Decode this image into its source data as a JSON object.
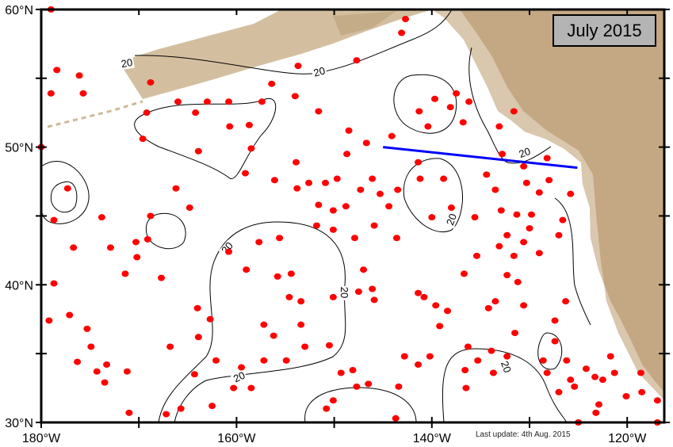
{
  "title": "July 2015",
  "last_update": "Last update: 4th Aug. 2015",
  "axes": {
    "lon_labels": [
      {
        "lon": -180,
        "label": "180°W"
      },
      {
        "lon": -160,
        "label": "160°W"
      },
      {
        "lon": -140,
        "label": "140°W"
      },
      {
        "lon": -120,
        "label": "120°W"
      }
    ],
    "lat_labels": [
      {
        "lat": 60,
        "label": "60°N"
      },
      {
        "lat": 50,
        "label": "50°N"
      },
      {
        "lat": 40,
        "label": "40°N"
      },
      {
        "lat": 30,
        "label": "30°N"
      }
    ],
    "lon_range": [
      -180,
      -116.2
    ],
    "lat_range": [
      30,
      60
    ]
  },
  "contour_labels": [
    "20",
    "20",
    "20",
    "20",
    "20",
    "20",
    "20",
    "20"
  ],
  "colors": {
    "floats": "#ff0000",
    "section_line": "#0000ff",
    "land": "#c9b08f",
    "contour": "#000000"
  },
  "section_line": {
    "start": [
      -145.0,
      50.0
    ],
    "end": [
      -125.1,
      48.5
    ]
  },
  "floats": [
    [
      -179.0,
      60.0
    ],
    [
      -178.4,
      55.6
    ],
    [
      -176.1,
      55.2
    ],
    [
      -175.7,
      53.9
    ],
    [
      -179.0,
      53.9
    ],
    [
      -168.8,
      54.7
    ],
    [
      -166.0,
      53.3
    ],
    [
      -163.0,
      53.3
    ],
    [
      -160.8,
      53.3
    ],
    [
      -169.2,
      52.5
    ],
    [
      -169.6,
      50.6
    ],
    [
      -164.2,
      52.5
    ],
    [
      -157.4,
      53.3
    ],
    [
      -156.4,
      54.6
    ],
    [
      -154.0,
      53.7
    ],
    [
      -153.7,
      55.9
    ],
    [
      -151.6,
      52.6
    ],
    [
      -147.7,
      56.3
    ],
    [
      -143.1,
      58.3
    ],
    [
      -142.7,
      59.3
    ],
    [
      -141.3,
      52.6
    ],
    [
      -139.7,
      53.5
    ],
    [
      -140.4,
      51.5
    ],
    [
      -137.5,
      53.9
    ],
    [
      -136.2,
      53.3
    ],
    [
      -136.8,
      51.8
    ],
    [
      -138.1,
      52.9
    ],
    [
      -133.1,
      51.5
    ],
    [
      -131.6,
      52.6
    ],
    [
      -130.6,
      48.6
    ],
    [
      -128.2,
      49.2
    ],
    [
      -132.8,
      49.5
    ],
    [
      -134.4,
      48.0
    ],
    [
      -144.1,
      50.8
    ],
    [
      -146.7,
      50.3
    ],
    [
      -148.5,
      51.2
    ],
    [
      -148.7,
      49.5
    ],
    [
      -149.7,
      47.7
    ],
    [
      -152.6,
      47.4
    ],
    [
      -153.8,
      47.0
    ],
    [
      -153.9,
      48.9
    ],
    [
      -156.1,
      47.6
    ],
    [
      -159.1,
      48.1
    ],
    [
      -158.5,
      49.9
    ],
    [
      -160.7,
      51.5
    ],
    [
      -158.7,
      51.6
    ],
    [
      -163.9,
      49.7
    ],
    [
      -166.2,
      47.0
    ],
    [
      -164.8,
      45.6
    ],
    [
      -168.8,
      45.0
    ],
    [
      -169.1,
      43.3
    ],
    [
      -170.3,
      43.1
    ],
    [
      -170.2,
      42.0
    ],
    [
      -171.4,
      40.8
    ],
    [
      -167.7,
      40.5
    ],
    [
      -173.8,
      44.9
    ],
    [
      -172.9,
      42.7
    ],
    [
      -177.3,
      47.0
    ],
    [
      -178.7,
      44.7
    ],
    [
      -176.7,
      42.7
    ],
    [
      -178.7,
      40.1
    ],
    [
      -179.2,
      37.4
    ],
    [
      -177.1,
      37.8
    ],
    [
      -175.3,
      36.8
    ],
    [
      -174.9,
      35.5
    ],
    [
      -176.3,
      34.4
    ],
    [
      -174.3,
      33.7
    ],
    [
      -173.3,
      34.2
    ],
    [
      -171.2,
      33.7
    ],
    [
      -173.5,
      32.9
    ],
    [
      -171.0,
      30.7
    ],
    [
      -167.2,
      30.6
    ],
    [
      -165.7,
      31.0
    ],
    [
      -162.5,
      31.2
    ],
    [
      -160.3,
      32.5
    ],
    [
      -158.5,
      32.5
    ],
    [
      -159.5,
      34.0
    ],
    [
      -157.2,
      34.5
    ],
    [
      -162.1,
      34.5
    ],
    [
      -164.3,
      33.5
    ],
    [
      -166.8,
      35.5
    ],
    [
      -164.0,
      38.3
    ],
    [
      -163.9,
      36.2
    ],
    [
      -162.7,
      37.5
    ],
    [
      -160.8,
      42.4
    ],
    [
      -159.0,
      41.1
    ],
    [
      -155.6,
      43.4
    ],
    [
      -157.7,
      43.1
    ],
    [
      -155.8,
      40.6
    ],
    [
      -154.4,
      40.8
    ],
    [
      -154.6,
      39.1
    ],
    [
      -157.2,
      37.1
    ],
    [
      -156.2,
      36.3
    ],
    [
      -153.4,
      38.8
    ],
    [
      -153.4,
      37.1
    ],
    [
      -153.0,
      35.5
    ],
    [
      -154.9,
      34.5
    ],
    [
      -150.5,
      35.6
    ],
    [
      -149.3,
      33.6
    ],
    [
      -148.1,
      33.8
    ],
    [
      -146.5,
      32.8
    ],
    [
      -150.8,
      31.0
    ],
    [
      -150.1,
      31.6
    ],
    [
      -147.7,
      32.6
    ],
    [
      -143.4,
      32.6
    ],
    [
      -143.7,
      30.3
    ],
    [
      -142.8,
      34.8
    ],
    [
      -141.4,
      34.2
    ],
    [
      -140.2,
      34.8
    ],
    [
      -139.2,
      37.0
    ],
    [
      -139.6,
      38.5
    ],
    [
      -138.4,
      38.1
    ],
    [
      -136.7,
      40.8
    ],
    [
      -134.2,
      38.3
    ],
    [
      -133.5,
      38.8
    ],
    [
      -135.4,
      42.1
    ],
    [
      -133.1,
      42.8
    ],
    [
      -131.6,
      42.1
    ],
    [
      -132.3,
      43.6
    ],
    [
      -130.6,
      43.1
    ],
    [
      -129.0,
      42.3
    ],
    [
      -131.3,
      45.1
    ],
    [
      -132.9,
      45.4
    ],
    [
      -133.5,
      46.9
    ],
    [
      -135.6,
      44.9
    ],
    [
      -138.0,
      45.6
    ],
    [
      -140.0,
      44.9
    ],
    [
      -138.8,
      47.7
    ],
    [
      -141.2,
      47.7
    ],
    [
      -143.5,
      46.9
    ],
    [
      -145.3,
      46.6
    ],
    [
      -146.1,
      47.7
    ],
    [
      -145.9,
      44.3
    ],
    [
      -144.4,
      45.7
    ],
    [
      -143.6,
      43.4
    ],
    [
      -150.1,
      45.4
    ],
    [
      -150.1,
      44.0
    ],
    [
      -147.9,
      43.4
    ],
    [
      -147.0,
      41.1
    ],
    [
      -148.8,
      45.7
    ],
    [
      -147.3,
      46.9
    ],
    [
      -141.4,
      48.9
    ],
    [
      -146.1,
      39.7
    ],
    [
      -147.5,
      39.5
    ],
    [
      -150.1,
      39.1
    ],
    [
      -150.9,
      47.4
    ],
    [
      -151.6,
      45.8
    ],
    [
      -151.8,
      44.3
    ],
    [
      -126.6,
      44.7
    ],
    [
      -127.0,
      43.6
    ],
    [
      -125.8,
      46.6
    ],
    [
      -129.0,
      46.7
    ],
    [
      -128.0,
      47.6
    ],
    [
      -130.3,
      47.4
    ],
    [
      -129.8,
      45.1
    ],
    [
      -130.0,
      44.1
    ],
    [
      -126.3,
      38.8
    ],
    [
      -127.4,
      37.4
    ],
    [
      -127.4,
      35.9
    ],
    [
      -126.2,
      34.5
    ],
    [
      -130.6,
      38.5
    ],
    [
      -131.2,
      40.2
    ],
    [
      -132.3,
      40.7
    ],
    [
      -131.5,
      36.5
    ],
    [
      -132.3,
      34.8
    ],
    [
      -133.9,
      35.2
    ],
    [
      -133.7,
      33.6
    ],
    [
      -135.3,
      34.5
    ],
    [
      -136.6,
      33.8
    ],
    [
      -136.5,
      32.5
    ],
    [
      -136.3,
      35.5
    ],
    [
      -141.4,
      39.4
    ],
    [
      -140.8,
      39.1
    ],
    [
      -145.9,
      38.9
    ],
    [
      -128.6,
      34.5
    ],
    [
      -128.2,
      33.6
    ],
    [
      -125.8,
      33.1
    ],
    [
      -124.2,
      33.9
    ],
    [
      -123.3,
      33.3
    ],
    [
      -125.4,
      32.6
    ],
    [
      -127.0,
      32.2
    ],
    [
      -125.0,
      30.0
    ],
    [
      -121.7,
      34.8
    ],
    [
      -121.3,
      33.6
    ],
    [
      -122.5,
      33.1
    ],
    [
      -120.1,
      31.9
    ],
    [
      -118.5,
      32.2
    ],
    [
      -118.6,
      33.6
    ],
    [
      -116.9,
      31.6
    ],
    [
      -116.9,
      30.0
    ],
    [
      -122.9,
      31.3
    ],
    [
      -123.2,
      30.7
    ],
    [
      -180.0,
      50.0
    ]
  ]
}
